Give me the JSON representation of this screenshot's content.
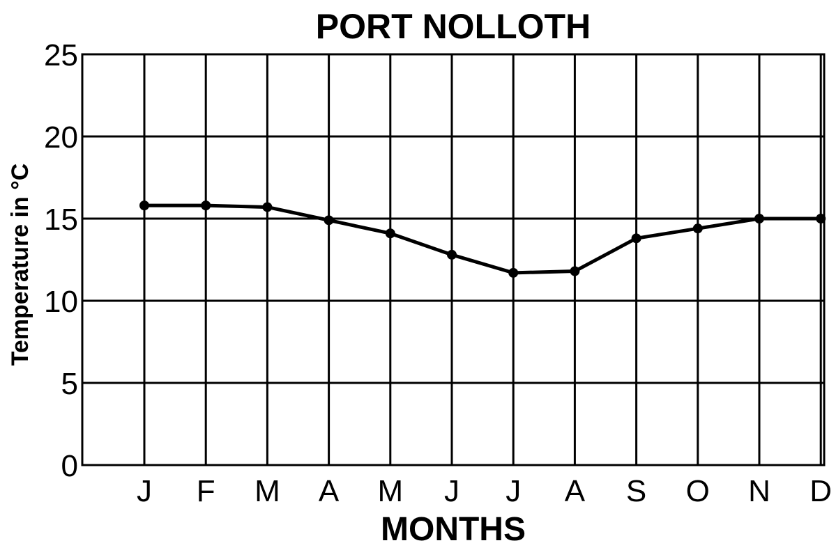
{
  "chart_data": {
    "type": "line",
    "title": "PORT NOLLOTH",
    "xlabel": "MONTHS",
    "ylabel": "Temperature in °C",
    "categories": [
      "J",
      "F",
      "M",
      "A",
      "M",
      "J",
      "J",
      "A",
      "S",
      "O",
      "N",
      "D"
    ],
    "series": [
      {
        "values": [
          15.8,
          15.8,
          15.7,
          14.9,
          14.1,
          12.8,
          11.7,
          11.8,
          13.8,
          14.4,
          15.0,
          15.0
        ]
      }
    ],
    "ylim": [
      0,
      25
    ],
    "yticks": [
      0,
      5,
      10,
      15,
      20,
      25
    ],
    "grid": true,
    "line_color": "#000000"
  }
}
